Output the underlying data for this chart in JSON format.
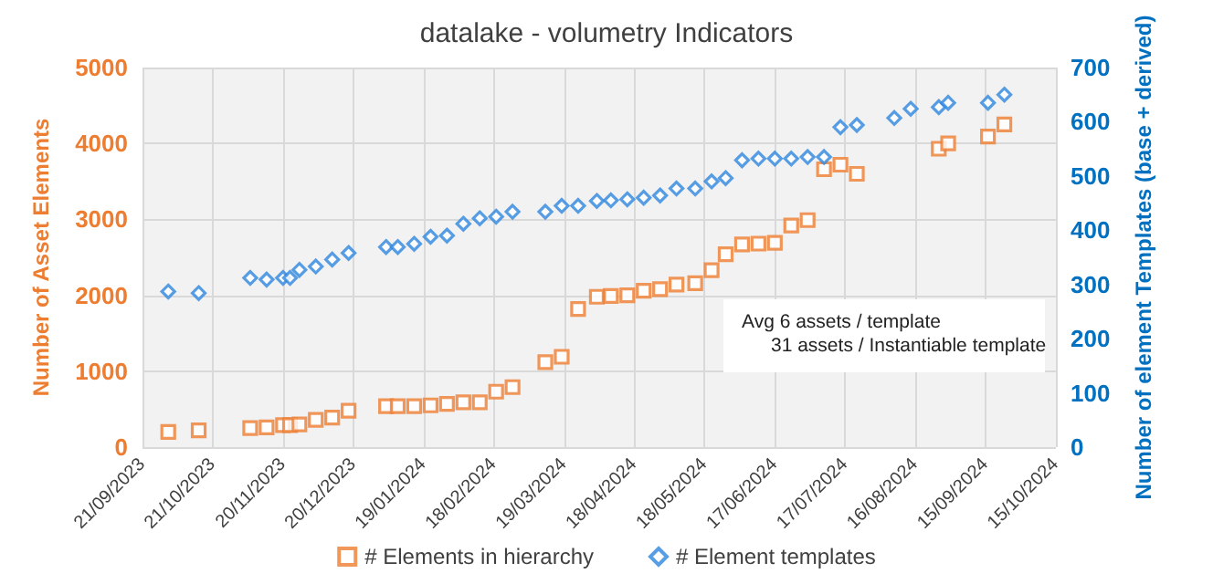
{
  "chart_data": {
    "type": "scatter",
    "title": "datalake - volumetry Indicators",
    "ylabel": "Number of Asset Elements",
    "y2label": "Number of element Templates (base + derived)",
    "annotations": [
      "Avg 6 assets / template",
      "31 assets / Instantiable template"
    ],
    "xlim": [
      "2023-09-21",
      "2024-10-15"
    ],
    "xticks": [
      {
        "value": "2023-09-21",
        "label": "21/09/2023"
      },
      {
        "value": "2023-10-21",
        "label": "21/10/2023"
      },
      {
        "value": "2023-11-20",
        "label": "20/11/2023"
      },
      {
        "value": "2023-12-20",
        "label": "20/12/2023"
      },
      {
        "value": "2024-01-19",
        "label": "19/01/2024"
      },
      {
        "value": "2024-02-18",
        "label": "18/02/2024"
      },
      {
        "value": "2024-03-19",
        "label": "19/03/2024"
      },
      {
        "value": "2024-04-18",
        "label": "18/04/2024"
      },
      {
        "value": "2024-05-18",
        "label": "18/05/2024"
      },
      {
        "value": "2024-06-17",
        "label": "17/06/2024"
      },
      {
        "value": "2024-07-17",
        "label": "17/07/2024"
      },
      {
        "value": "2024-08-16",
        "label": "16/08/2024"
      },
      {
        "value": "2024-09-15",
        "label": "15/09/2024"
      },
      {
        "value": "2024-10-15",
        "label": "15/10/2024"
      }
    ],
    "ylim": [
      0,
      5000
    ],
    "yticks": [
      0,
      1000,
      2000,
      3000,
      4000,
      5000
    ],
    "y2lim": [
      0,
      700
    ],
    "y2ticks": [
      0,
      100,
      200,
      300,
      400,
      500,
      600,
      700
    ],
    "grid": true,
    "legend": "bottom",
    "series": [
      {
        "name": "# Elements in hierarchy",
        "color": "#ed7d31",
        "marker": "square",
        "x": [
          "2023-10-02",
          "2023-10-15",
          "2023-11-06",
          "2023-11-13",
          "2023-11-20",
          "2023-11-23",
          "2023-11-27",
          "2023-12-04",
          "2023-12-11",
          "2023-12-18",
          "2024-01-03",
          "2024-01-08",
          "2024-01-15",
          "2024-01-22",
          "2024-01-29",
          "2024-02-05",
          "2024-02-12",
          "2024-02-19",
          "2024-02-26",
          "2024-03-11",
          "2024-03-18",
          "2024-03-25",
          "2024-04-02",
          "2024-04-08",
          "2024-04-15",
          "2024-04-22",
          "2024-04-29",
          "2024-05-06",
          "2024-05-14",
          "2024-05-21",
          "2024-05-27",
          "2024-06-03",
          "2024-06-10",
          "2024-06-17",
          "2024-06-24",
          "2024-07-01",
          "2024-07-08",
          "2024-07-15",
          "2024-07-22",
          "2024-08-26",
          "2024-08-30",
          "2024-09-16",
          "2024-09-23"
        ],
        "values": [
          200,
          220,
          250,
          260,
          290,
          290,
          300,
          360,
          390,
          480,
          540,
          540,
          540,
          550,
          570,
          590,
          590,
          730,
          790,
          1120,
          1190,
          1820,
          1980,
          1990,
          2000,
          2060,
          2080,
          2140,
          2160,
          2330,
          2540,
          2670,
          2680,
          2690,
          2920,
          2990,
          3660,
          3720,
          3600,
          3930,
          4000,
          4090,
          4250
        ]
      },
      {
        "name": "# Element templates",
        "color": "#2e86de",
        "marker": "diamond",
        "axis": "y2",
        "x": [
          "2023-10-02",
          "2023-10-15",
          "2023-11-06",
          "2023-11-13",
          "2023-11-20",
          "2023-11-23",
          "2023-11-27",
          "2023-12-04",
          "2023-12-11",
          "2023-12-18",
          "2024-01-03",
          "2024-01-08",
          "2024-01-15",
          "2024-01-22",
          "2024-01-29",
          "2024-02-05",
          "2024-02-12",
          "2024-02-19",
          "2024-02-26",
          "2024-03-11",
          "2024-03-18",
          "2024-03-25",
          "2024-04-02",
          "2024-04-08",
          "2024-04-15",
          "2024-04-22",
          "2024-04-29",
          "2024-05-06",
          "2024-05-14",
          "2024-05-21",
          "2024-05-27",
          "2024-06-03",
          "2024-06-10",
          "2024-06-17",
          "2024-06-24",
          "2024-07-01",
          "2024-07-08",
          "2024-07-15",
          "2024-07-22",
          "2024-08-07",
          "2024-08-14",
          "2024-08-26",
          "2024-08-30",
          "2024-09-16",
          "2024-09-23"
        ],
        "values": [
          287,
          284,
          312,
          309,
          312,
          312,
          327,
          333,
          346,
          358,
          369,
          369,
          375,
          388,
          390,
          412,
          422,
          425,
          434,
          434,
          445,
          445,
          454,
          455,
          457,
          460,
          464,
          477,
          477,
          490,
          496,
          529,
          532,
          532,
          532,
          535,
          535,
          590,
          594,
          607,
          624,
          627,
          635,
          635,
          650
        ]
      }
    ]
  }
}
